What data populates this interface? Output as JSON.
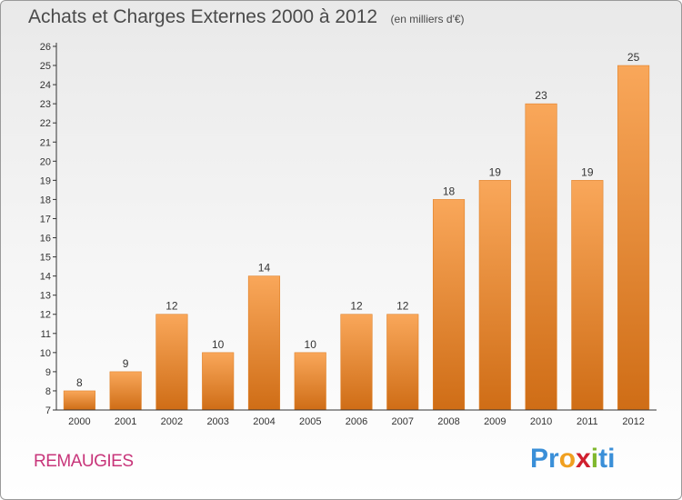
{
  "header": {
    "title": "Achats et Charges Externes 2000 à 2012",
    "subtitle": "(en milliers d'€)"
  },
  "footer": {
    "location": "REMAUGIES",
    "brand_letters": [
      "P",
      "r",
      "o",
      "x",
      "i",
      "t",
      "i"
    ],
    "brand_colors": [
      "#3a8fd8",
      "#3a8fd8",
      "#f0a020",
      "#d0202f",
      "#80b82e",
      "#3a8fd8",
      "#3a8fd8"
    ]
  },
  "colors": {
    "bar_top": "#f9a75a",
    "bar_bottom": "#cf6d16",
    "bar_edge": "#e0822a",
    "axis": "#333333",
    "text": "#333333"
  },
  "chart_data": {
    "type": "bar",
    "categories": [
      "2000",
      "2001",
      "2002",
      "2003",
      "2004",
      "2005",
      "2006",
      "2007",
      "2008",
      "2009",
      "2010",
      "2011",
      "2012"
    ],
    "values": [
      8,
      9,
      12,
      10,
      14,
      10,
      12,
      12,
      18,
      19,
      23,
      19,
      25
    ],
    "title": "Achats et Charges Externes 2000 à 2012",
    "subtitle": "(en milliers d'€)",
    "xlabel": "",
    "ylabel": "",
    "ylim": [
      7,
      26
    ],
    "yticks": [
      7,
      8,
      9,
      10,
      11,
      12,
      13,
      14,
      15,
      16,
      17,
      18,
      19,
      20,
      21,
      22,
      23,
      24,
      25,
      26
    ],
    "grid": false,
    "legend": "none"
  }
}
